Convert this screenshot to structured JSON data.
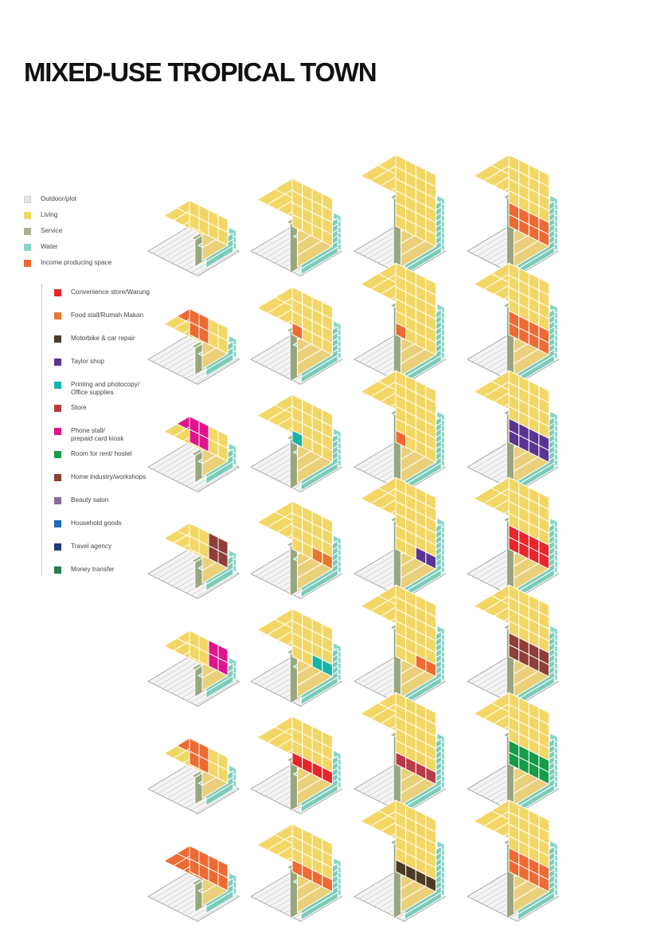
{
  "title": "MIXED-USE TROPICAL TOWN",
  "colors": {
    "outdoor": "#e6e6e6",
    "living": "#f2d764",
    "service": "#a8b58c",
    "water": "#86d6c6",
    "income": "#ef6a32",
    "convenience": "#e8262c",
    "food": "#e8772e",
    "motorbike": "#4e3a24",
    "taylor": "#5a3493",
    "printing": "#14b5a9",
    "store": "#b83a46",
    "phone": "#e0138c",
    "room": "#169c48",
    "home_industry": "#8f3e38",
    "beauty": "#8c6a98",
    "household": "#1d6cb4",
    "travel": "#1e3a78",
    "money": "#237f4c"
  },
  "legend_primary": [
    {
      "key": "outdoor",
      "label": "Outdoor/plot"
    },
    {
      "key": "living",
      "label": "Living"
    },
    {
      "key": "service",
      "label": "Service"
    },
    {
      "key": "water",
      "label": "Water"
    },
    {
      "key": "income",
      "label": "Income producing space"
    }
  ],
  "legend_secondary": [
    {
      "key": "convenience",
      "label": "Convenience store/Warung"
    },
    {
      "key": "food",
      "label": "Food stall/Rumah Makan"
    },
    {
      "key": "motorbike",
      "label": "Motorbike & car repair"
    },
    {
      "key": "taylor",
      "label": "Taylor shop"
    },
    {
      "key": "printing",
      "label": "Printing and photocopy/\nOffice supplies"
    },
    {
      "key": "store",
      "label": "Store"
    },
    {
      "key": "phone",
      "label": "Phone stall/\nprepaid card kiosk"
    },
    {
      "key": "room",
      "label": "Room for rent/ hostel"
    },
    {
      "key": "home_industry",
      "label": "Home industry/workshops"
    },
    {
      "key": "beauty",
      "label": "Beauty salon"
    },
    {
      "key": "household",
      "label": "Household goods"
    },
    {
      "key": "travel",
      "label": "Travel agency"
    },
    {
      "key": "money",
      "label": "Money transfer"
    }
  ],
  "grid": {
    "columns": [
      {
        "storeys": 1,
        "cells": [
          {
            "use": "living",
            "coverage": "none"
          },
          {
            "use": "income",
            "coverage": "front-left"
          },
          {
            "use": "phone",
            "coverage": "front-left"
          },
          {
            "use": "home_industry",
            "coverage": "front-right"
          },
          {
            "use": "phone",
            "coverage": "front-right"
          },
          {
            "use": "income",
            "coverage": "front-left"
          },
          {
            "use": "income",
            "coverage": "full"
          }
        ]
      },
      {
        "storeys": 2,
        "cells": [
          {
            "use": "living",
            "coverage": "none"
          },
          {
            "use": "income",
            "coverage": "front-left"
          },
          {
            "use": "printing",
            "coverage": "front-left"
          },
          {
            "use": "food",
            "coverage": "front-right"
          },
          {
            "use": "printing",
            "coverage": "front-right"
          },
          {
            "use": "convenience",
            "coverage": "front-strip"
          },
          {
            "use": "income",
            "coverage": "front-strip"
          }
        ]
      },
      {
        "storeys": 3,
        "cells": [
          {
            "use": "living",
            "coverage": "none"
          },
          {
            "use": "income",
            "coverage": "front-left"
          },
          {
            "use": "income",
            "coverage": "front-left"
          },
          {
            "use": "taylor",
            "coverage": "front-right"
          },
          {
            "use": "income",
            "coverage": "front-right"
          },
          {
            "use": "store",
            "coverage": "front-strip"
          },
          {
            "use": "motorbike",
            "coverage": "front-strip"
          }
        ]
      },
      {
        "storeys": 3,
        "cells": [
          {
            "use": "income",
            "coverage": "ground-floor"
          },
          {
            "use": "income",
            "coverage": "ground-floor"
          },
          {
            "use": "taylor",
            "coverage": "ground-floor"
          },
          {
            "use": "convenience",
            "coverage": "ground-floor"
          },
          {
            "use": "home_industry",
            "coverage": "ground-floor"
          },
          {
            "use": "room",
            "coverage": "ground-floor"
          },
          {
            "use": "income",
            "coverage": "ground-floor"
          }
        ]
      }
    ]
  }
}
